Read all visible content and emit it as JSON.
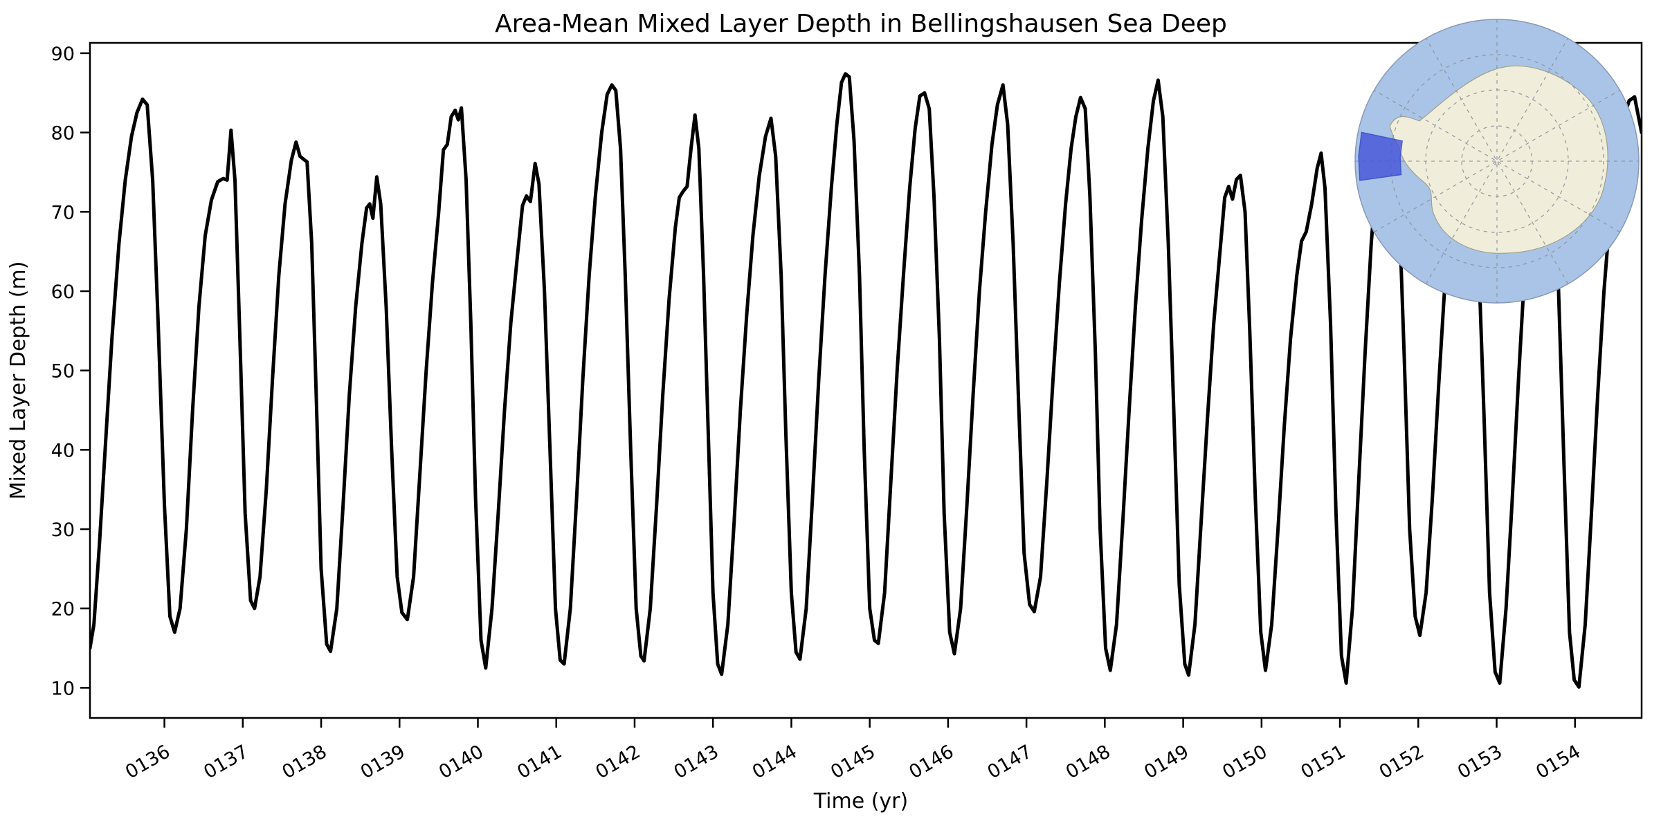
{
  "chart_data": {
    "type": "line",
    "title": "Area-Mean Mixed Layer Depth in Bellingshausen Sea Deep",
    "xlabel": "Time (yr)",
    "ylabel": "Mixed Layer Depth (m)",
    "xlim": [
      135.05,
      154.85
    ],
    "ylim": [
      6.2,
      91.3
    ],
    "x_ticks": [
      136,
      137,
      138,
      139,
      140,
      141,
      142,
      143,
      144,
      145,
      146,
      147,
      148,
      149,
      150,
      151,
      152,
      153,
      154
    ],
    "x_tick_labels": [
      "0136",
      "0137",
      "0138",
      "0139",
      "0140",
      "0141",
      "0142",
      "0143",
      "0144",
      "0145",
      "0146",
      "0147",
      "0148",
      "0149",
      "0150",
      "0151",
      "0152",
      "0153",
      "0154"
    ],
    "y_ticks": [
      10,
      20,
      30,
      40,
      50,
      60,
      70,
      80,
      90
    ],
    "grid": false,
    "legend": "none",
    "line_color": "#000000",
    "line_width": 5,
    "series": [
      {
        "name": "area_mean_mixed_layer_depth_m",
        "points": [
          [
            135.05,
            15
          ],
          [
            135.1,
            18
          ],
          [
            135.17,
            28
          ],
          [
            135.25,
            41
          ],
          [
            135.33,
            54
          ],
          [
            135.42,
            66
          ],
          [
            135.5,
            74
          ],
          [
            135.58,
            79.5
          ],
          [
            135.65,
            82.5
          ],
          [
            135.72,
            84.2
          ],
          [
            135.78,
            83.5
          ],
          [
            135.85,
            74
          ],
          [
            135.92,
            56
          ],
          [
            136.0,
            33
          ],
          [
            136.07,
            19
          ],
          [
            136.13,
            17
          ],
          [
            136.2,
            20
          ],
          [
            136.28,
            30
          ],
          [
            136.36,
            45
          ],
          [
            136.44,
            58
          ],
          [
            136.52,
            67
          ],
          [
            136.6,
            71.5
          ],
          [
            136.68,
            73.8
          ],
          [
            136.75,
            74.2
          ],
          [
            136.8,
            74
          ],
          [
            136.85,
            80.3
          ],
          [
            136.9,
            74
          ],
          [
            136.96,
            55
          ],
          [
            137.03,
            32
          ],
          [
            137.1,
            21
          ],
          [
            137.15,
            20
          ],
          [
            137.22,
            24
          ],
          [
            137.3,
            35
          ],
          [
            137.38,
            49
          ],
          [
            137.46,
            62
          ],
          [
            137.54,
            71
          ],
          [
            137.62,
            76.5
          ],
          [
            137.68,
            78.8
          ],
          [
            137.73,
            77
          ],
          [
            137.78,
            76.6
          ],
          [
            137.82,
            76.3
          ],
          [
            137.88,
            66
          ],
          [
            137.94,
            46
          ],
          [
            138.0,
            25
          ],
          [
            138.07,
            15.5
          ],
          [
            138.12,
            14.6
          ],
          [
            138.2,
            20
          ],
          [
            138.28,
            33
          ],
          [
            138.36,
            47
          ],
          [
            138.44,
            58
          ],
          [
            138.52,
            66
          ],
          [
            138.58,
            70.5
          ],
          [
            138.62,
            71
          ],
          [
            138.66,
            69.2
          ],
          [
            138.71,
            74.4
          ],
          [
            138.76,
            71
          ],
          [
            138.83,
            58
          ],
          [
            138.9,
            40
          ],
          [
            138.97,
            24
          ],
          [
            139.03,
            19.5
          ],
          [
            139.1,
            18.6
          ],
          [
            139.18,
            24
          ],
          [
            139.26,
            37
          ],
          [
            139.34,
            50
          ],
          [
            139.42,
            61
          ],
          [
            139.5,
            70
          ],
          [
            139.56,
            77.8
          ],
          [
            139.61,
            78.5
          ],
          [
            139.66,
            82
          ],
          [
            139.71,
            82.8
          ],
          [
            139.75,
            81.6
          ],
          [
            139.79,
            83.1
          ],
          [
            139.85,
            74
          ],
          [
            139.91,
            56
          ],
          [
            139.97,
            34
          ],
          [
            140.04,
            16
          ],
          [
            140.1,
            12.5
          ],
          [
            140.18,
            20
          ],
          [
            140.26,
            32
          ],
          [
            140.34,
            45
          ],
          [
            140.42,
            56
          ],
          [
            140.5,
            64
          ],
          [
            140.57,
            70.8
          ],
          [
            140.62,
            72
          ],
          [
            140.67,
            71.3
          ],
          [
            140.73,
            76.1
          ],
          [
            140.78,
            73.5
          ],
          [
            140.85,
            60
          ],
          [
            140.92,
            40
          ],
          [
            140.99,
            20
          ],
          [
            141.05,
            13.5
          ],
          [
            141.1,
            13
          ],
          [
            141.18,
            20
          ],
          [
            141.26,
            34
          ],
          [
            141.34,
            49
          ],
          [
            141.42,
            62
          ],
          [
            141.5,
            72
          ],
          [
            141.58,
            80
          ],
          [
            141.65,
            84.8
          ],
          [
            141.71,
            86
          ],
          [
            141.76,
            85.3
          ],
          [
            141.82,
            78
          ],
          [
            141.88,
            62
          ],
          [
            141.95,
            40
          ],
          [
            142.02,
            20
          ],
          [
            142.08,
            14
          ],
          [
            142.12,
            13.4
          ],
          [
            142.2,
            20
          ],
          [
            142.28,
            33
          ],
          [
            142.36,
            47
          ],
          [
            142.44,
            59
          ],
          [
            142.52,
            68
          ],
          [
            142.57,
            71.8
          ],
          [
            142.62,
            72.6
          ],
          [
            142.67,
            73.2
          ],
          [
            142.72,
            78
          ],
          [
            142.77,
            82.2
          ],
          [
            142.82,
            78
          ],
          [
            142.88,
            62
          ],
          [
            142.94,
            42
          ],
          [
            143.0,
            22
          ],
          [
            143.06,
            13
          ],
          [
            143.11,
            11.7
          ],
          [
            143.19,
            18
          ],
          [
            143.27,
            31
          ],
          [
            143.35,
            45
          ],
          [
            143.43,
            57
          ],
          [
            143.51,
            67
          ],
          [
            143.59,
            74.5
          ],
          [
            143.67,
            79.5
          ],
          [
            143.74,
            81.8
          ],
          [
            143.8,
            77
          ],
          [
            143.87,
            62
          ],
          [
            143.93,
            42
          ],
          [
            144.0,
            22
          ],
          [
            144.06,
            14.5
          ],
          [
            144.11,
            13.6
          ],
          [
            144.19,
            20
          ],
          [
            144.27,
            34
          ],
          [
            144.35,
            49
          ],
          [
            144.43,
            62
          ],
          [
            144.51,
            73
          ],
          [
            144.58,
            81
          ],
          [
            144.64,
            86.3
          ],
          [
            144.69,
            87.4
          ],
          [
            144.74,
            87
          ],
          [
            144.8,
            79
          ],
          [
            144.87,
            62
          ],
          [
            144.93,
            40
          ],
          [
            145.0,
            20
          ],
          [
            145.06,
            16
          ],
          [
            145.11,
            15.6
          ],
          [
            145.19,
            22
          ],
          [
            145.27,
            36
          ],
          [
            145.35,
            50
          ],
          [
            145.43,
            62
          ],
          [
            145.51,
            73
          ],
          [
            145.58,
            80.5
          ],
          [
            145.64,
            84.6
          ],
          [
            145.7,
            85
          ],
          [
            145.76,
            83
          ],
          [
            145.82,
            72
          ],
          [
            145.89,
            54
          ],
          [
            145.95,
            32
          ],
          [
            146.02,
            17
          ],
          [
            146.08,
            14.3
          ],
          [
            146.16,
            20
          ],
          [
            146.24,
            33
          ],
          [
            146.32,
            47
          ],
          [
            146.4,
            60
          ],
          [
            146.48,
            70
          ],
          [
            146.56,
            78.5
          ],
          [
            146.63,
            83.5
          ],
          [
            146.7,
            86
          ],
          [
            146.76,
            81
          ],
          [
            146.83,
            66
          ],
          [
            146.9,
            46
          ],
          [
            146.97,
            27
          ],
          [
            147.04,
            20.5
          ],
          [
            147.1,
            19.6
          ],
          [
            147.18,
            24
          ],
          [
            147.26,
            36
          ],
          [
            147.34,
            49
          ],
          [
            147.42,
            61
          ],
          [
            147.5,
            71
          ],
          [
            147.57,
            78
          ],
          [
            147.63,
            82
          ],
          [
            147.69,
            84.4
          ],
          [
            147.75,
            83
          ],
          [
            147.81,
            72
          ],
          [
            147.88,
            52
          ],
          [
            147.94,
            30
          ],
          [
            148.01,
            15
          ],
          [
            148.07,
            12.2
          ],
          [
            148.15,
            18
          ],
          [
            148.23,
            31
          ],
          [
            148.31,
            45
          ],
          [
            148.39,
            58
          ],
          [
            148.47,
            69
          ],
          [
            148.55,
            78
          ],
          [
            148.62,
            84
          ],
          [
            148.68,
            86.6
          ],
          [
            148.74,
            82
          ],
          [
            148.81,
            66
          ],
          [
            148.88,
            45
          ],
          [
            148.95,
            23
          ],
          [
            149.02,
            13
          ],
          [
            149.07,
            11.6
          ],
          [
            149.15,
            18
          ],
          [
            149.23,
            31
          ],
          [
            149.31,
            44
          ],
          [
            149.39,
            56
          ],
          [
            149.47,
            65
          ],
          [
            149.53,
            71.8
          ],
          [
            149.58,
            73.2
          ],
          [
            149.63,
            71.6
          ],
          [
            149.68,
            74.1
          ],
          [
            149.73,
            74.6
          ],
          [
            149.79,
            70
          ],
          [
            149.85,
            55
          ],
          [
            149.92,
            34
          ],
          [
            149.99,
            17
          ],
          [
            150.05,
            12.2
          ],
          [
            150.13,
            18
          ],
          [
            150.21,
            30
          ],
          [
            150.29,
            43
          ],
          [
            150.37,
            54
          ],
          [
            150.45,
            62
          ],
          [
            150.51,
            66.3
          ],
          [
            150.57,
            67.5
          ],
          [
            150.64,
            71
          ],
          [
            150.71,
            75.5
          ],
          [
            150.76,
            77.4
          ],
          [
            150.81,
            73
          ],
          [
            150.88,
            56
          ],
          [
            150.95,
            32
          ],
          [
            151.02,
            14
          ],
          [
            151.08,
            10.6
          ],
          [
            151.16,
            20
          ],
          [
            151.24,
            36
          ],
          [
            151.32,
            52
          ],
          [
            151.4,
            66
          ],
          [
            151.48,
            76
          ],
          [
            151.55,
            81.5
          ],
          [
            151.62,
            84
          ],
          [
            151.68,
            83
          ],
          [
            151.75,
            72
          ],
          [
            151.82,
            52
          ],
          [
            151.89,
            30
          ],
          [
            151.96,
            19
          ],
          [
            152.02,
            16.6
          ],
          [
            152.1,
            22
          ],
          [
            152.18,
            34
          ],
          [
            152.26,
            48
          ],
          [
            152.34,
            61
          ],
          [
            152.42,
            71
          ],
          [
            152.5,
            78
          ],
          [
            152.57,
            82.5
          ],
          [
            152.63,
            83.2
          ],
          [
            152.7,
            79
          ],
          [
            152.77,
            64
          ],
          [
            152.84,
            44
          ],
          [
            152.91,
            22
          ],
          [
            152.98,
            12
          ],
          [
            153.04,
            10.6
          ],
          [
            153.12,
            20
          ],
          [
            153.2,
            34
          ],
          [
            153.28,
            49
          ],
          [
            153.36,
            63
          ],
          [
            153.44,
            73
          ],
          [
            153.52,
            80
          ],
          [
            153.59,
            84.3
          ],
          [
            153.65,
            85
          ],
          [
            153.72,
            78
          ],
          [
            153.79,
            60
          ],
          [
            153.86,
            38
          ],
          [
            153.93,
            17
          ],
          [
            153.99,
            11
          ],
          [
            154.05,
            10.1
          ],
          [
            154.13,
            18
          ],
          [
            154.21,
            32
          ],
          [
            154.29,
            47
          ],
          [
            154.37,
            60
          ],
          [
            154.45,
            70
          ],
          [
            154.53,
            77
          ],
          [
            154.61,
            81.5
          ],
          [
            154.69,
            84
          ],
          [
            154.76,
            84.5
          ],
          [
            154.85,
            80
          ]
        ]
      }
    ],
    "inset_map": {
      "name": "antarctica-south-polar-inset",
      "ocean_color": "#a9c4e6",
      "land_color": "#f0eedb",
      "graticule_color": "#8a8f99",
      "highlight_color": "#4353d9",
      "highlight_region": "Bellingshausen Sea Deep"
    }
  }
}
